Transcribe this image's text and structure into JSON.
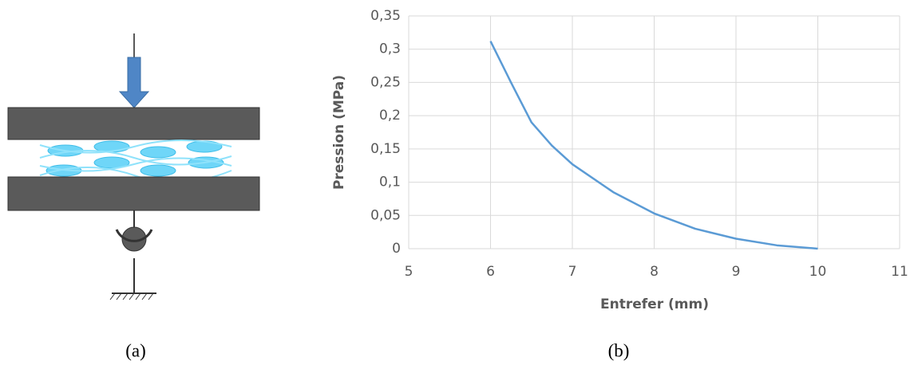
{
  "panel_labels": [
    "(a)",
    "(b)"
  ],
  "chart_data": {
    "type": "line",
    "x_label": "Entrefer (mm)",
    "y_label": "Pression (MPa)",
    "x": [
      6,
      6.25,
      6.5,
      6.75,
      7,
      7.5,
      8,
      8.5,
      9,
      9.5,
      10
    ],
    "series": [
      {
        "color": "#5b9bd5",
        "values": [
          0.312,
          0.25,
          0.19,
          0.155,
          0.127,
          0.085,
          0.053,
          0.03,
          0.015,
          0.005,
          0
        ]
      }
    ],
    "xlim": [
      5,
      11
    ],
    "xticks": [
      5,
      6,
      7,
      8,
      9,
      10,
      11
    ],
    "ylim": [
      0,
      0.35
    ],
    "yticks": [
      0,
      {
        "value": 0.05,
        "label": "0,05"
      },
      {
        "value": 0.1,
        "label": "0,1"
      },
      {
        "value": 0.15,
        "label": "0,15"
      },
      {
        "value": 0.2,
        "label": "0,2"
      },
      {
        "value": 0.25,
        "label": "0,25"
      },
      {
        "value": 0.3,
        "label": "0,3"
      },
      {
        "value": 0.35,
        "label": "0,35"
      }
    ],
    "grid": true
  }
}
